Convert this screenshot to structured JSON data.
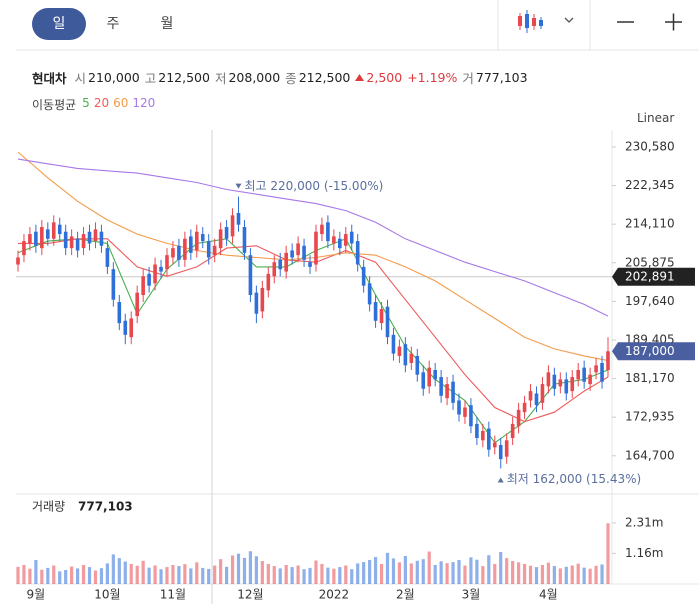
{
  "ui": {
    "tabs": [
      "일",
      "주",
      "월"
    ],
    "selected_tab": 0,
    "info": {
      "name": "현대차",
      "items": [
        {
          "label": "시",
          "value": "210,000"
        },
        {
          "label": "고",
          "value": "212,500"
        },
        {
          "label": "저",
          "value": "208,000"
        },
        {
          "label": "종",
          "value": "212,500"
        }
      ],
      "change": "2,500",
      "change_pct": "+1.19%",
      "volume_label": "거",
      "volume_value": "777,103"
    },
    "scale": "Linear"
  },
  "chart_data": {
    "type": "candlestick",
    "categories": [
      null,
      null,
      null,
      "9월",
      null,
      null,
      null,
      null,
      null,
      null,
      null,
      null,
      null,
      null,
      null,
      "10월",
      null,
      null,
      null,
      null,
      null,
      null,
      null,
      null,
      null,
      null,
      "11월",
      null,
      null,
      null,
      null,
      null,
      null,
      null,
      null,
      null,
      null,
      null,
      null,
      "12월",
      null,
      null,
      null,
      null,
      null,
      null,
      null,
      null,
      null,
      null,
      null,
      null,
      null,
      "2022",
      null,
      null,
      null,
      null,
      null,
      null,
      null,
      null,
      null,
      null,
      null,
      "2월",
      null,
      null,
      null,
      null,
      null,
      null,
      null,
      null,
      null,
      null,
      "3월",
      null,
      null,
      null,
      null,
      null,
      null,
      null,
      null,
      null,
      null,
      null,
      null,
      "4월",
      null,
      null,
      null,
      null,
      null,
      null,
      null,
      null,
      null,
      null
    ],
    "open": [
      205500,
      207500,
      210000,
      212500,
      209000,
      213000,
      211000,
      214000,
      212500,
      209000,
      211000,
      209000,
      212500,
      210500,
      212500,
      209000,
      204500,
      197500,
      193500,
      190000,
      194500,
      199000,
      203500,
      201500,
      205000,
      204500,
      207000,
      209500,
      206500,
      211500,
      208500,
      212000,
      210500,
      207500,
      209000,
      213500,
      211500,
      216500,
      213500,
      207500,
      199500,
      195500,
      200000,
      203000,
      206500,
      204000,
      208500,
      207500,
      209500,
      206000,
      205500,
      212000,
      214500,
      210000,
      211000,
      209500,
      212500,
      210500,
      205000,
      201500,
      197500,
      193000,
      196500,
      190500,
      186000,
      188500,
      184500,
      186000,
      182500,
      179500,
      183000,
      181500,
      177000,
      180500,
      176500,
      173000,
      175500,
      171500,
      168000,
      170500,
      166500,
      167000,
      164500,
      168500,
      171000,
      174000,
      176500,
      178000,
      176000,
      179500,
      182000,
      179500,
      181000,
      178500,
      181000,
      183500,
      180000,
      182500,
      184500,
      183000
    ],
    "high": [
      208500,
      212000,
      213500,
      214000,
      215000,
      214500,
      216000,
      215500,
      214000,
      213000,
      212500,
      213500,
      214000,
      214500,
      214000,
      210500,
      206000,
      199000,
      195000,
      195500,
      201000,
      204500,
      205000,
      207000,
      206500,
      209000,
      210500,
      211000,
      212500,
      213000,
      214000,
      213500,
      212000,
      211000,
      214500,
      215000,
      217500,
      220000,
      215000,
      209000,
      201000,
      202000,
      205000,
      207500,
      208000,
      209500,
      210000,
      211500,
      211000,
      207500,
      214000,
      215500,
      216000,
      213000,
      212500,
      213500,
      214000,
      212000,
      206500,
      203000,
      199000,
      197500,
      198000,
      192000,
      189500,
      190000,
      188000,
      187500,
      184000,
      185000,
      184500,
      183000,
      181500,
      182000,
      178000,
      176500,
      177000,
      173000,
      171500,
      172000,
      169000,
      168500,
      169500,
      173000,
      176000,
      177500,
      180000,
      179500,
      181500,
      184000,
      183500,
      182500,
      182500,
      183000,
      184500,
      185000,
      183500,
      185500,
      186000,
      190000
    ],
    "low": [
      204000,
      206000,
      208500,
      208000,
      207500,
      209500,
      209500,
      210500,
      207500,
      207500,
      207000,
      207500,
      208500,
      209000,
      208000,
      203500,
      196500,
      191500,
      188500,
      188500,
      193000,
      197500,
      199500,
      200000,
      202500,
      203000,
      205500,
      205000,
      205000,
      206500,
      207000,
      209000,
      205500,
      206000,
      207500,
      209500,
      210000,
      212500,
      206500,
      197500,
      193000,
      194000,
      198500,
      201500,
      203000,
      202500,
      205500,
      206000,
      205000,
      203500,
      204000,
      210500,
      209000,
      208500,
      207500,
      208000,
      208500,
      204000,
      199500,
      195500,
      192000,
      191500,
      188500,
      185000,
      184500,
      182500,
      183000,
      180500,
      177500,
      178000,
      179500,
      176000,
      175500,
      174500,
      172000,
      171500,
      169500,
      167000,
      166500,
      164500,
      165000,
      162000,
      163000,
      167000,
      169500,
      172500,
      175000,
      174000,
      174500,
      178000,
      177500,
      178000,
      176500,
      177000,
      179500,
      179000,
      178500,
      181000,
      179000,
      181500
    ],
    "close": [
      207000,
      210500,
      212000,
      209500,
      213500,
      211000,
      214500,
      212000,
      209000,
      211500,
      208500,
      212000,
      210000,
      213000,
      209500,
      205000,
      198000,
      193000,
      190500,
      194000,
      199500,
      203000,
      201000,
      205500,
      204000,
      207500,
      209000,
      206500,
      211000,
      208000,
      212500,
      210500,
      207000,
      209500,
      213000,
      211000,
      216000,
      214000,
      208000,
      199000,
      195000,
      200500,
      203500,
      206000,
      204500,
      208000,
      207000,
      210000,
      206500,
      205000,
      212500,
      214000,
      210500,
      211500,
      209000,
      212000,
      210000,
      205500,
      201000,
      197000,
      193500,
      196000,
      190000,
      186500,
      188000,
      184000,
      186500,
      182000,
      179000,
      183500,
      181000,
      177500,
      180000,
      176000,
      173500,
      175000,
      171000,
      168500,
      170000,
      166000,
      167500,
      164000,
      168000,
      171500,
      174500,
      176000,
      178500,
      175500,
      180000,
      182500,
      179000,
      181000,
      178000,
      181500,
      183000,
      180500,
      182000,
      184000,
      180500,
      187000
    ],
    "volume": [
      650000,
      720000,
      580000,
      910000,
      540000,
      610000,
      700000,
      480000,
      530000,
      660000,
      590000,
      720000,
      640000,
      510000,
      600000,
      780000,
      1120000,
      980000,
      850000,
      760000,
      690000,
      880000,
      620000,
      700000,
      560000,
      640000,
      720000,
      680000,
      750000,
      590000,
      820000,
      610000,
      570000,
      700000,
      940000,
      650000,
      1080000,
      1150000,
      990000,
      1240000,
      1050000,
      870000,
      760000,
      680000,
      590000,
      720000,
      640000,
      700000,
      560000,
      610000,
      890000,
      760000,
      620000,
      580000,
      640000,
      700000,
      560000,
      780000,
      830000,
      910000,
      1020000,
      760000,
      1180000,
      970000,
      820000,
      1060000,
      780000,
      880000,
      940000,
      1230000,
      720000,
      860000,
      790000,
      830000,
      910000,
      700000,
      1010000,
      920000,
      680000,
      1090000,
      760000,
      1210000,
      980000,
      870000,
      820000,
      760000,
      690000,
      640000,
      720000,
      810000,
      680000,
      590000,
      650000,
      700000,
      770000,
      620000,
      580000,
      690000,
      740000,
      2300000
    ],
    "up_color": "#e8474e",
    "down_color": "#2f6fd8",
    "ylim": [
      157400,
      234200
    ],
    "yticks": [
      {
        "value": 230580,
        "label": "230,580"
      },
      {
        "value": 222345,
        "label": "222,345"
      },
      {
        "value": 214110,
        "label": "214,110"
      },
      {
        "value": 205875,
        "label": "205,875"
      },
      {
        "value": 197640,
        "label": "197,640"
      },
      {
        "value": 189405,
        "label": "189,405"
      },
      {
        "value": 181170,
        "label": "181,170"
      },
      {
        "value": 172935,
        "label": "172,935"
      },
      {
        "value": 164700,
        "label": "164,700"
      }
    ],
    "price_lines": [
      {
        "value": 202891,
        "label": "202,891",
        "color": "#222222",
        "line": true
      },
      {
        "value": 187000,
        "label": "187,000",
        "color": "#4a5f9f",
        "line": false
      }
    ],
    "annotations": [
      {
        "text": "최고 220,000 (-15.00%)",
        "x": 37,
        "kind": "high"
      },
      {
        "text": "최저 162,000 (15.43%)",
        "x": 81,
        "kind": "low"
      }
    ],
    "moving_averages": {
      "title": "이동평균",
      "x": [
        0,
        5,
        10,
        15,
        20,
        25,
        30,
        35,
        40,
        45,
        50,
        55,
        60,
        65,
        70,
        75,
        80,
        85,
        90,
        95,
        99
      ],
      "series": [
        {
          "name": "5",
          "color": "#4caf50",
          "values": [
            208000,
            210500,
            211000,
            210000,
            195000,
            204500,
            210000,
            211000,
            205000,
            205000,
            208500,
            211000,
            199000,
            188000,
            181000,
            176500,
            167500,
            172000,
            180000,
            181000,
            183000
          ]
        },
        {
          "name": "20",
          "color": "#ef5a5a",
          "values": [
            210000,
            210000,
            211000,
            211000,
            205000,
            203000,
            205000,
            209000,
            209500,
            206500,
            206000,
            208500,
            206000,
            198000,
            190000,
            182000,
            175000,
            172000,
            174000,
            178500,
            181500
          ]
        },
        {
          "name": "60",
          "color": "#f39c4a",
          "values": [
            229500,
            224000,
            219000,
            215000,
            212000,
            210000,
            208500,
            207500,
            207000,
            206500,
            207000,
            208000,
            207500,
            205000,
            202000,
            198000,
            194000,
            190000,
            187500,
            186000,
            185000
          ]
        },
        {
          "name": "120",
          "color": "#a678e8",
          "values": [
            228000,
            227000,
            226000,
            225500,
            225000,
            224000,
            223000,
            221500,
            220500,
            219500,
            218500,
            217000,
            214500,
            211000,
            208500,
            206000,
            204000,
            202000,
            199500,
            197000,
            194500
          ]
        }
      ]
    },
    "volume_title": "거래량",
    "volume_value": "777,103",
    "volume_ylim": [
      0,
      3370000
    ],
    "volume_yticks": [
      {
        "value": 2310000,
        "label": "2.31m"
      },
      {
        "value": 1160000,
        "label": "1.16m"
      }
    ]
  }
}
